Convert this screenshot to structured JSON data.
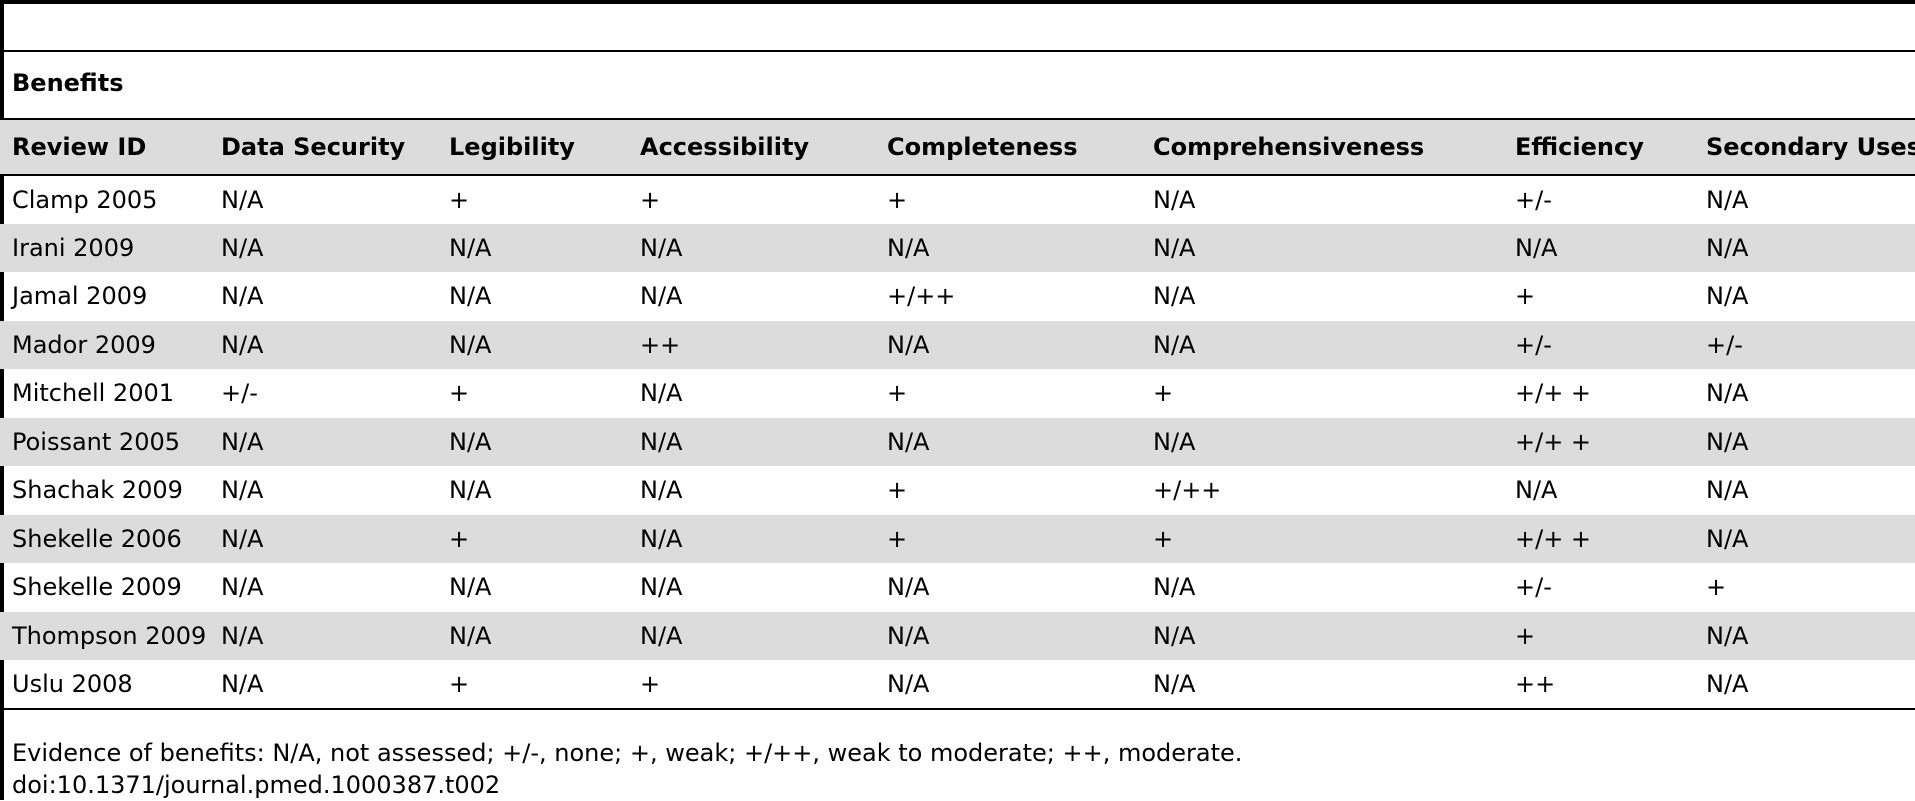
{
  "section_title": "Benefits",
  "columns": [
    "Review ID",
    "Data Security",
    "Legibility",
    "Accessibility",
    "Completeness",
    "Comprehensiveness",
    "Efficiency",
    "Secondary Uses"
  ],
  "rows": [
    [
      "Clamp 2005",
      "N/A",
      "+",
      "+",
      "+",
      "N/A",
      "+/-",
      "N/A"
    ],
    [
      "Irani 2009",
      "N/A",
      "N/A",
      "N/A",
      "N/A",
      "N/A",
      "N/A",
      "N/A"
    ],
    [
      "Jamal 2009",
      "N/A",
      "N/A",
      "N/A",
      "+/++",
      "N/A",
      "+",
      "N/A"
    ],
    [
      "Mador 2009",
      "N/A",
      "N/A",
      "++",
      "N/A",
      "N/A",
      "+/-",
      "+/-"
    ],
    [
      "Mitchell 2001",
      "+/-",
      "+",
      "N/A",
      "+",
      "+",
      "+/+ +",
      "N/A"
    ],
    [
      "Poissant 2005",
      "N/A",
      "N/A",
      "N/A",
      "N/A",
      "N/A",
      "+/+ +",
      "N/A"
    ],
    [
      "Shachak 2009",
      "N/A",
      "N/A",
      "N/A",
      "+",
      "+/++",
      "N/A",
      "N/A"
    ],
    [
      "Shekelle 2006",
      "N/A",
      "+",
      "N/A",
      "+",
      "+",
      "+/+ +",
      "N/A"
    ],
    [
      "Shekelle 2009",
      "N/A",
      "N/A",
      "N/A",
      "N/A",
      "N/A",
      "+/-",
      "+"
    ],
    [
      "Thompson 2009",
      "N/A",
      "N/A",
      "N/A",
      "N/A",
      "N/A",
      "+",
      "N/A"
    ],
    [
      "Uslu 2008",
      "N/A",
      "+",
      "+",
      "N/A",
      "N/A",
      "++",
      "N/A"
    ]
  ],
  "footnote": "Evidence of benefits: N/A, not assessed; +/-, none; +, weak; +/++, weak to moderate; ++, moderate.",
  "doi": "doi:10.1371/journal.pmed.1000387.t002"
}
